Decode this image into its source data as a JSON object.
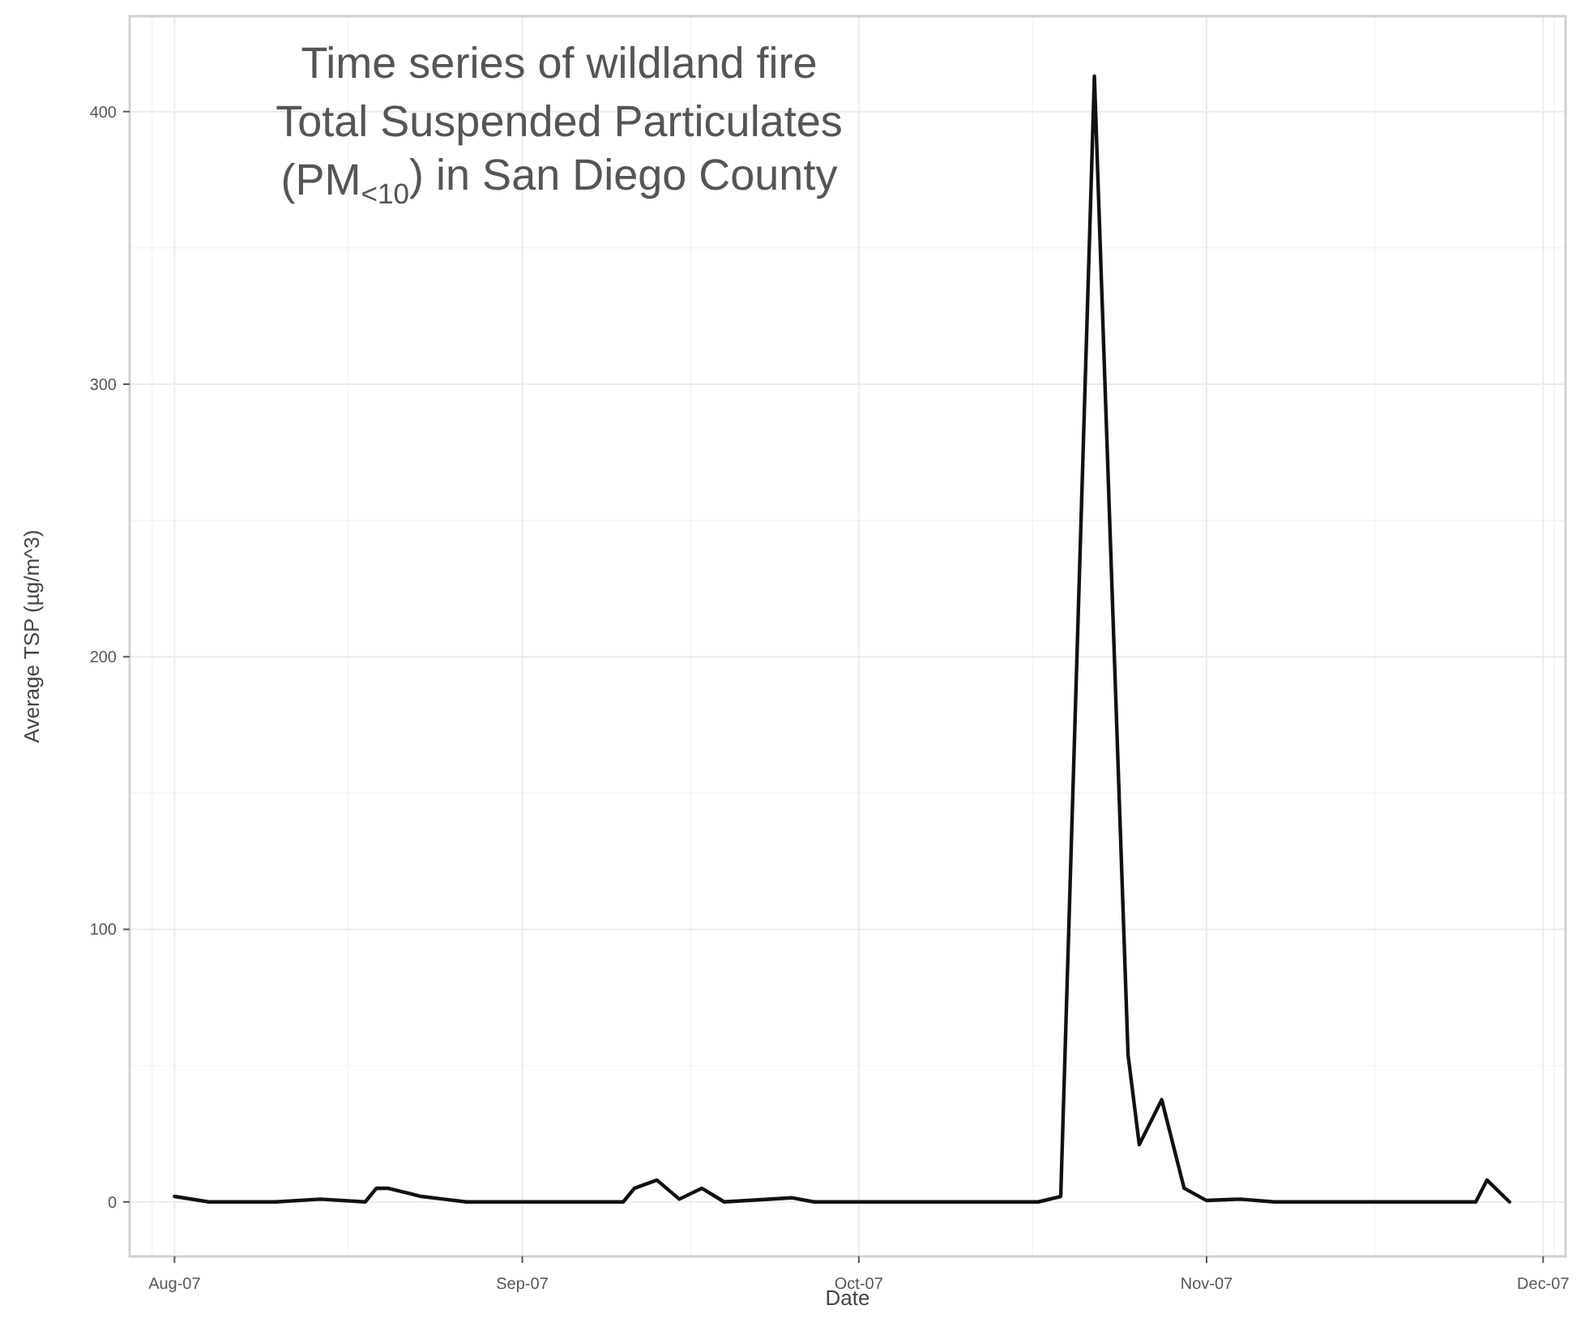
{
  "chart_data": {
    "type": "line",
    "title": "Time series of wildland fire\nTotal Suspended Particulates\n(PM$_{<10}$) in San Diego County",
    "xlabel": "Date",
    "ylabel": "Average TSP (µg/m^3)",
    "x": [
      "2007-08-01",
      "2007-08-04",
      "2007-08-10",
      "2007-08-14",
      "2007-08-18",
      "2007-08-19",
      "2007-08-20",
      "2007-08-23",
      "2007-08-25",
      "2007-08-27",
      "2007-09-01",
      "2007-09-10",
      "2007-09-11",
      "2007-09-13",
      "2007-09-15",
      "2007-09-17",
      "2007-09-19",
      "2007-09-25",
      "2007-09-27",
      "2007-10-01",
      "2007-10-17",
      "2007-10-19",
      "2007-10-22",
      "2007-10-25",
      "2007-10-26",
      "2007-10-28",
      "2007-10-30",
      "2007-11-01",
      "2007-11-04",
      "2007-11-07",
      "2007-11-25",
      "2007-11-26",
      "2007-11-28"
    ],
    "series": [
      {
        "color": "#111111",
        "values": [
          2,
          0,
          0,
          1,
          0,
          5,
          5,
          2,
          1,
          0,
          0,
          0,
          5,
          8,
          1,
          5,
          0,
          1.5,
          0,
          0,
          0,
          2,
          413,
          54,
          21,
          37.5,
          5,
          0.5,
          1,
          0,
          0,
          8,
          0
        ]
      }
    ],
    "xlim": [
      "2007-07-28",
      "2007-12-03"
    ],
    "ylim": [
      -20,
      435
    ],
    "xticks": [
      {
        "value": "2007-08-01",
        "label": "Aug-07"
      },
      {
        "value": "2007-09-01",
        "label": "Sep-07"
      },
      {
        "value": "2007-10-01",
        "label": "Oct-07"
      },
      {
        "value": "2007-11-01",
        "label": "Nov-07"
      },
      {
        "value": "2007-12-01",
        "label": "Dec-07"
      }
    ],
    "yticks": [
      0,
      100,
      200,
      300,
      400
    ],
    "grid": true,
    "line_style": "solid",
    "marker": "none"
  }
}
